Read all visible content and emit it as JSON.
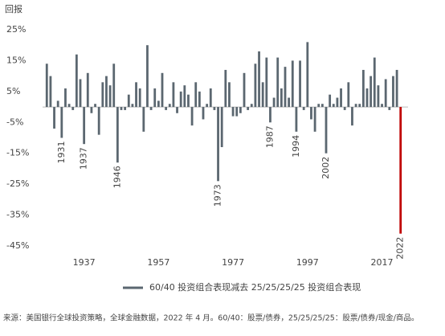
{
  "chart_data": {
    "type": "bar",
    "y_label": "回报",
    "legend_label": "60/40 投资组合表现减去 25/25/25/25 投资组合表现",
    "footnote": "来源：美国银行全球投资策略，全球金融数据，2022 年 4 月。60/40：股票/债券，25/25/25/25：股票/债券/现金/商品。",
    "color": "#5b6770",
    "highlight": {
      "x": 2022,
      "color": "#c00000"
    },
    "x": [
      1927,
      1928,
      1929,
      1930,
      1931,
      1932,
      1933,
      1934,
      1935,
      1936,
      1937,
      1938,
      1939,
      1940,
      1941,
      1942,
      1943,
      1944,
      1945,
      1946,
      1947,
      1948,
      1949,
      1950,
      1951,
      1952,
      1953,
      1954,
      1955,
      1956,
      1957,
      1958,
      1959,
      1960,
      1961,
      1962,
      1963,
      1964,
      1965,
      1966,
      1967,
      1968,
      1969,
      1970,
      1971,
      1972,
      1973,
      1974,
      1975,
      1976,
      1977,
      1978,
      1979,
      1980,
      1981,
      1982,
      1983,
      1984,
      1985,
      1986,
      1987,
      1988,
      1989,
      1990,
      1991,
      1992,
      1993,
      1994,
      1995,
      1996,
      1997,
      1998,
      1999,
      2000,
      2001,
      2002,
      2003,
      2004,
      2005,
      2006,
      2007,
      2008,
      2009,
      2010,
      2011,
      2012,
      2013,
      2014,
      2015,
      2016,
      2017,
      2018,
      2019,
      2020,
      2021,
      2022
    ],
    "values": [
      14,
      10,
      -7,
      2,
      -10,
      6,
      1,
      -1,
      17,
      9,
      -12,
      11,
      -2,
      1,
      -9,
      8,
      10,
      7,
      14,
      -18,
      -1,
      -1,
      4,
      1,
      8,
      6,
      -8,
      20,
      -1,
      6,
      2,
      11,
      -1,
      1,
      8,
      -2,
      5,
      7,
      4,
      -6,
      8,
      5,
      -4,
      1,
      6,
      -1,
      -24,
      -13,
      12,
      8,
      -3,
      -3,
      -2,
      11,
      -1,
      1,
      14,
      18,
      8,
      16,
      -5,
      3,
      16,
      6,
      13,
      3,
      15,
      -8,
      15,
      -1,
      21,
      -4,
      -8,
      1,
      1,
      -15,
      4,
      1,
      3,
      6,
      -1,
      8,
      -6,
      1,
      1,
      12,
      6,
      10,
      16,
      7,
      1,
      9,
      -1,
      10,
      12,
      -41
    ],
    "annotated_years": [
      1931,
      1937,
      1946,
      1973,
      1987,
      1994,
      2002,
      2022
    ],
    "xlim": [
      1925,
      2024
    ],
    "xticks": [
      1937,
      1957,
      1977,
      1997,
      2017
    ],
    "ylim": [
      -45,
      25
    ],
    "yticks": [
      {
        "value": 25,
        "label": "25%"
      },
      {
        "value": 15,
        "label": "15%"
      },
      {
        "value": 5,
        "label": "5%"
      },
      {
        "value": -5,
        "label": "-5%"
      },
      {
        "value": -15,
        "label": "-15%"
      },
      {
        "value": -25,
        "label": "-25%"
      },
      {
        "value": -35,
        "label": "-35%"
      },
      {
        "value": -45,
        "label": "-45%"
      }
    ]
  }
}
